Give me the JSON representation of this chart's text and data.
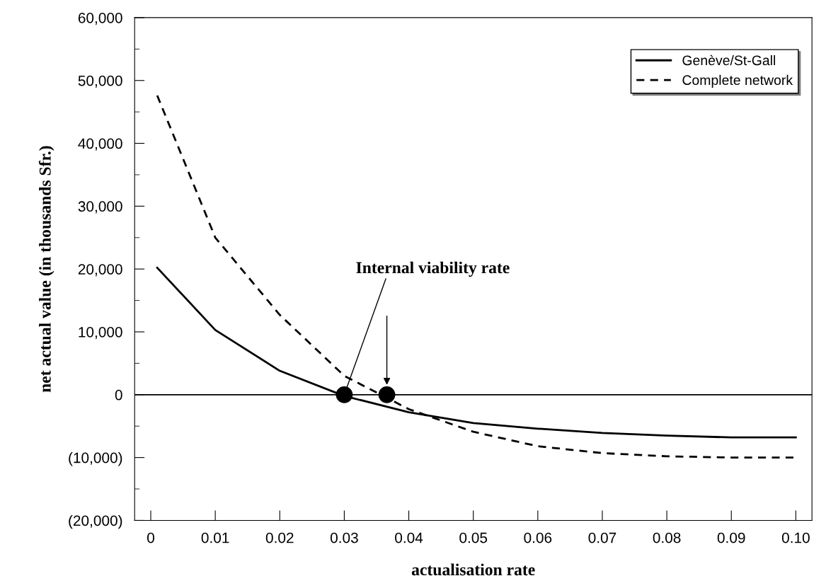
{
  "chart_data": {
    "type": "line",
    "xlabel": "actualisation rate",
    "ylabel": "net actual value (in thousands Sfr.)",
    "series": [
      {
        "name": "Genève/St-Gall",
        "color": "#000000",
        "line_style": "solid",
        "x": [
          0.001,
          0.01,
          0.02,
          0.03,
          0.04,
          0.05,
          0.06,
          0.07,
          0.08,
          0.09,
          0.1
        ],
        "values": [
          20200,
          10300,
          3800,
          -200,
          -2800,
          -4500,
          -5400,
          -6100,
          -6500,
          -6800,
          -6800
        ]
      },
      {
        "name": "Complete network",
        "color": "#000000",
        "line_style": "dashed",
        "x": [
          0.001,
          0.01,
          0.02,
          0.03,
          0.04,
          0.05,
          0.06,
          0.07,
          0.08,
          0.09,
          0.1
        ],
        "values": [
          47600,
          25000,
          12700,
          3000,
          -2300,
          -5900,
          -8200,
          -9300,
          -9800,
          -10000,
          -10000
        ]
      },
      {
        "type": "scatter",
        "color": "#000000",
        "marker": "circle",
        "x": [
          0.03,
          0.0366
        ],
        "values": [
          0,
          0
        ]
      }
    ],
    "xlim": [
      -0.0025,
      0.1025
    ],
    "ylim": [
      -20000,
      60000
    ],
    "xticks": [
      {
        "value": 0,
        "label": "0"
      },
      0.01,
      0.02,
      0.03,
      0.04,
      0.05,
      0.06,
      0.07,
      0.08,
      0.09,
      {
        "value": 0.1,
        "label": "0.10"
      }
    ],
    "yticks": [
      {
        "value": -20000,
        "label": "(20,000)"
      },
      {
        "value": -10000,
        "label": "(10,000)"
      },
      0,
      {
        "value": 10000,
        "label": "10,000"
      },
      {
        "value": 20000,
        "label": "20,000"
      },
      {
        "value": 30000,
        "label": "30,000"
      },
      {
        "value": 40000,
        "label": "40,000"
      },
      {
        "value": 50000,
        "label": "50,000"
      },
      {
        "value": 60000,
        "label": "60,000"
      }
    ],
    "ref_lines": [
      {
        "axis": "y",
        "value": 0,
        "color": "#000000",
        "line_style": "solid"
      }
    ],
    "annotations": [
      {
        "text": "Internal viability rate",
        "x": 0.03,
        "y": 0
      }
    ],
    "grid": false,
    "legend": "top right"
  }
}
